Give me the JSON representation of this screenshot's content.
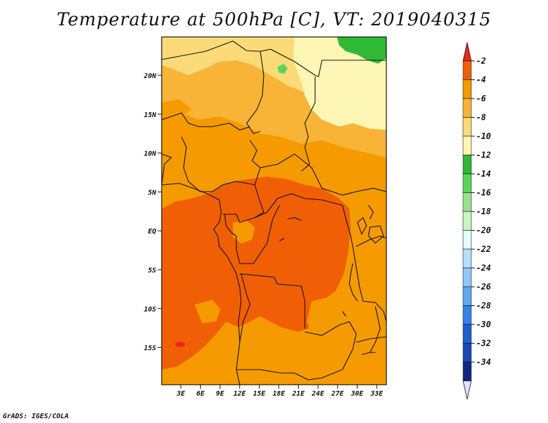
{
  "map": {
    "title": "Temperature at 500hPa [C], VT: 2019040315",
    "variable": "Temperature at 500hPa",
    "units": "C",
    "valid_time": "2019040315",
    "credit": "GrADS: IGES/COLA",
    "lat_range": [
      -20,
      24.5
    ],
    "lon_range": [
      0,
      34
    ],
    "lat_ticks": [
      "20N",
      "15N",
      "10N",
      "5N",
      "EQ",
      "5S",
      "10S",
      "15S"
    ],
    "lon_ticks": [
      "3E",
      "6E",
      "9E",
      "12E",
      "15E",
      "18E",
      "21E",
      "24E",
      "27E",
      "30E",
      "33E"
    ],
    "legend": {
      "labels": [
        "-2",
        "-4",
        "-6",
        "-8",
        "-10",
        "-12",
        "-14",
        "-16",
        "-18",
        "-20",
        "-22",
        "-24",
        "-26",
        "-28",
        "-30",
        "-32",
        "-34"
      ],
      "colors": [
        "#e8291e",
        "#f05f05",
        "#f59a00",
        "#f8b436",
        "#fbda78",
        "#fdf6b4",
        "#2fb934",
        "#5bd45b",
        "#98e48e",
        "#c8f5c2",
        "#e6fbff",
        "#b8defd",
        "#8ec8f8",
        "#5ea9f0",
        "#3284e6",
        "#1e5fcf",
        "#1947b4",
        "#0e2783",
        "#e2e3fc"
      ]
    }
  }
}
